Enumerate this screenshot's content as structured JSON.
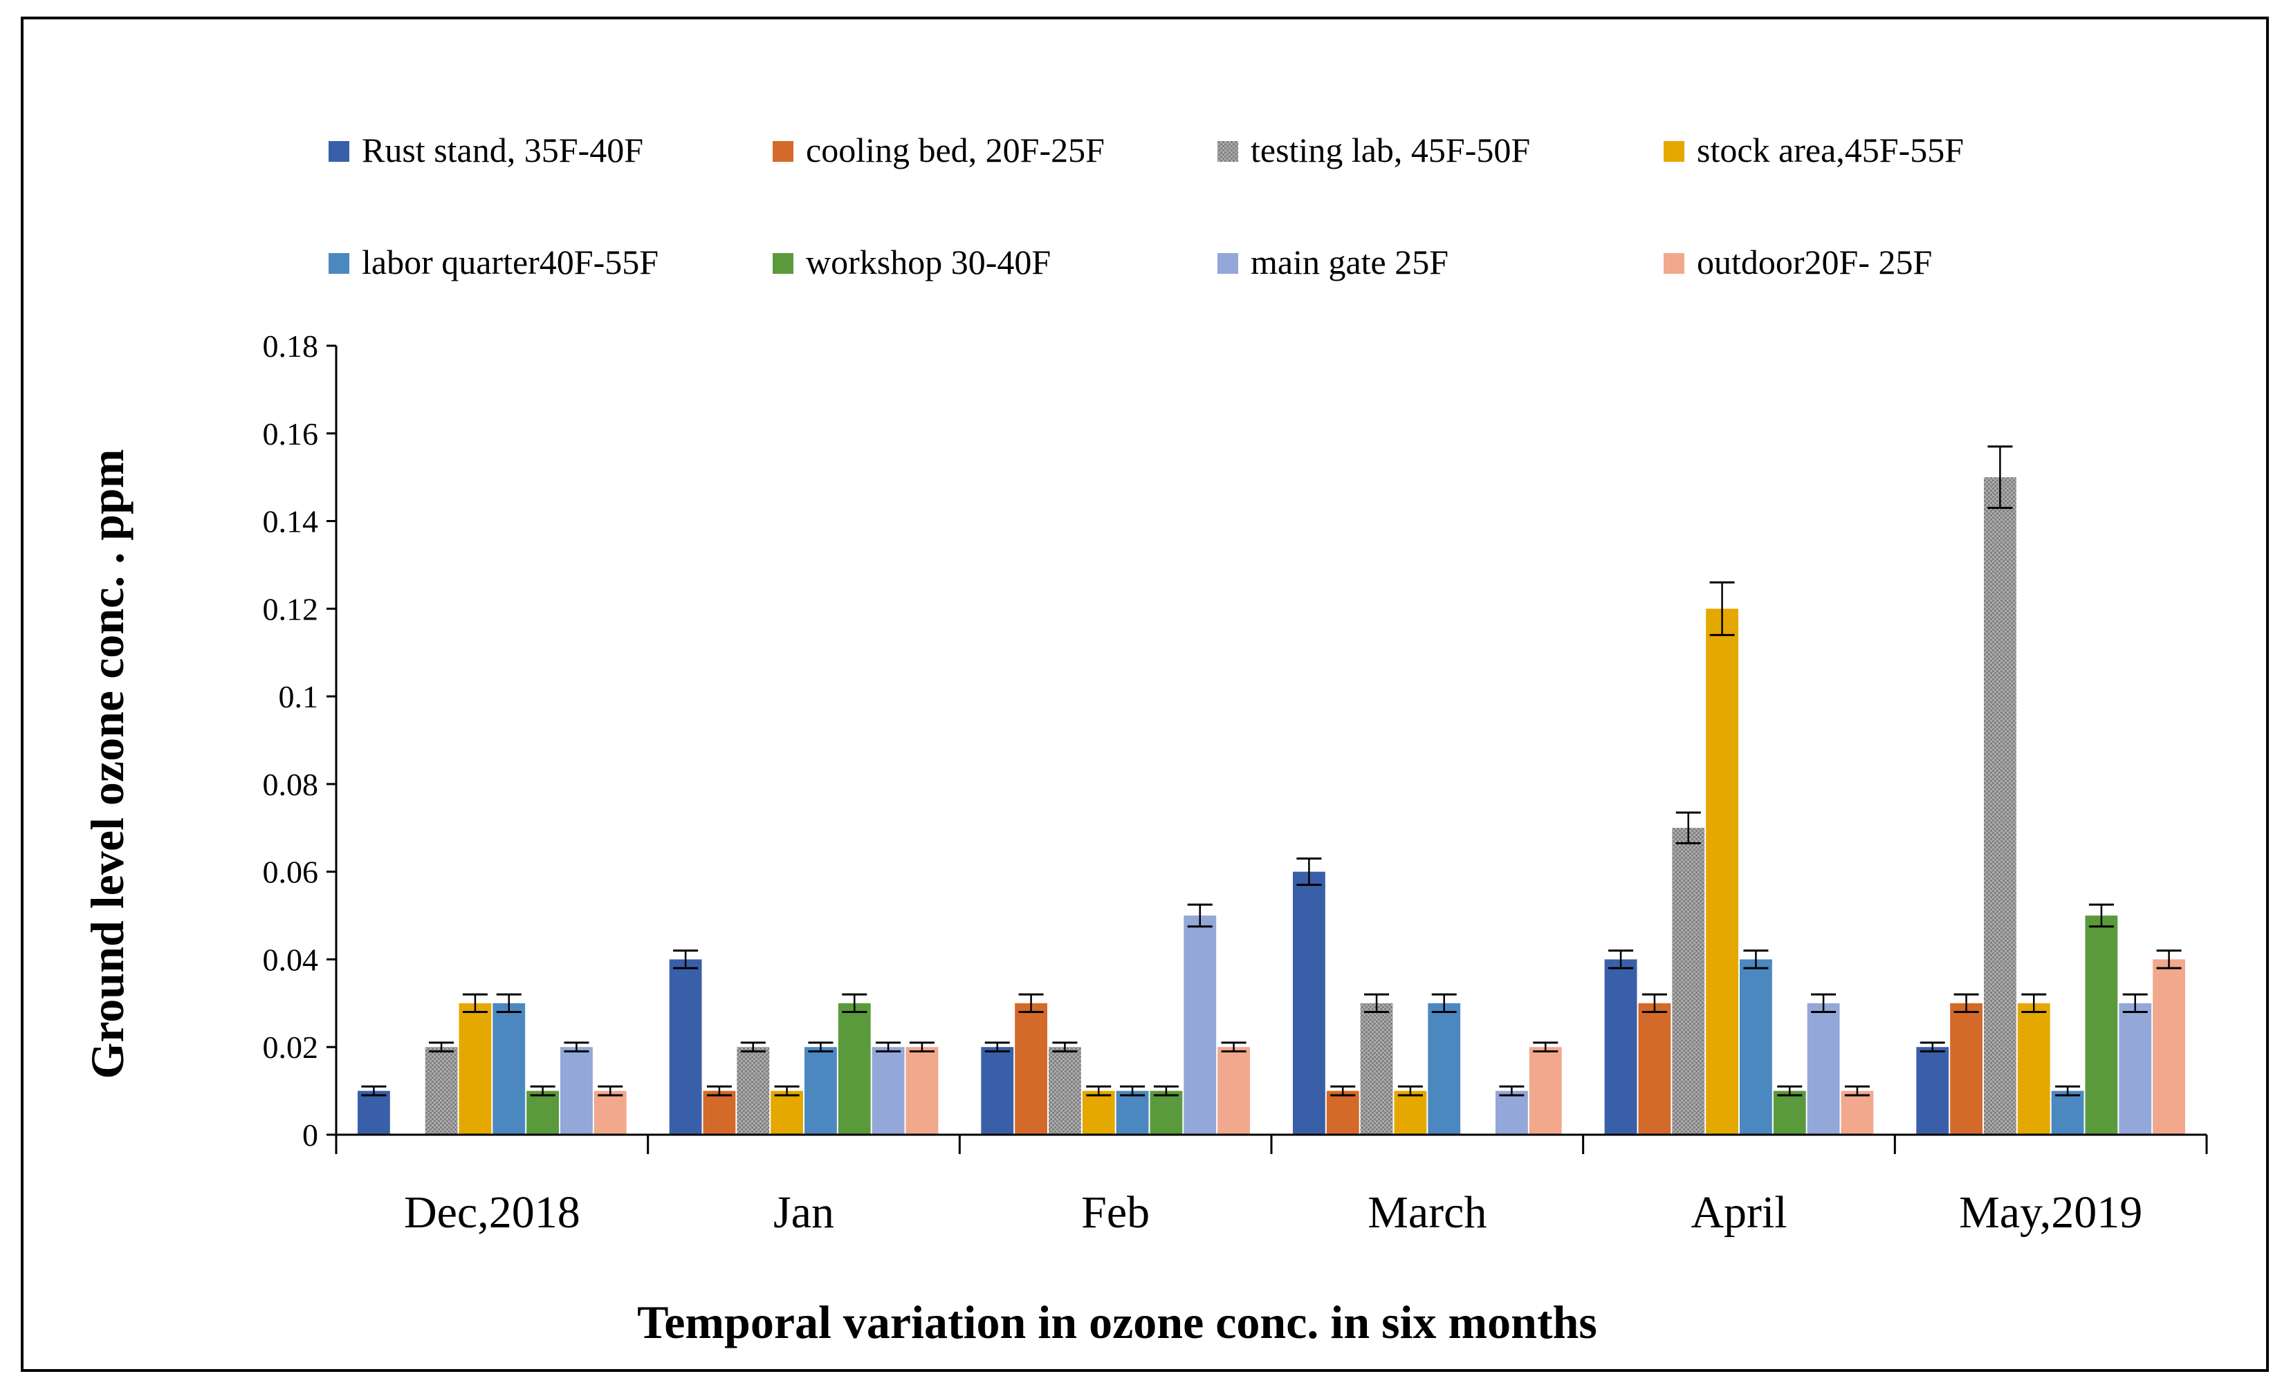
{
  "chart_data": {
    "type": "bar",
    "title": "",
    "xlabel": "Temporal variation in ozone conc. in six months",
    "ylabel": "Ground level  ozone conc. . ppm",
    "ylim": [
      0,
      0.18
    ],
    "yticks": [
      0,
      0.02,
      0.04,
      0.06,
      0.08,
      0.1,
      0.12,
      0.14,
      0.16,
      0.18
    ],
    "ytick_labels": [
      "0",
      "0.02",
      "0.04",
      "0.06",
      "0.08",
      "0.1",
      "0.12",
      "0.14",
      "0.16",
      "0.18"
    ],
    "categories": [
      "Dec,2018",
      "Jan",
      "Feb",
      "March",
      "April",
      "May,2019"
    ],
    "legend_position": "top",
    "error_bars": true,
    "series": [
      {
        "name": "Rust stand, 35F-40F",
        "color": "#3a5fa9",
        "values": [
          0.01,
          0.04,
          0.02,
          0.06,
          0.04,
          0.02
        ],
        "errors": [
          0.001,
          0.002,
          0.001,
          0.003,
          0.002,
          0.001
        ]
      },
      {
        "name": "cooling bed,  20F-25F",
        "color": "#d46a2a",
        "values": [
          0,
          0.01,
          0.03,
          0.01,
          0.03,
          0.03
        ],
        "errors": [
          0,
          0.001,
          0.002,
          0.001,
          0.002,
          0.002
        ]
      },
      {
        "name": "testing lab, 45F-50F",
        "color": "#9a9a9a",
        "values": [
          0.02,
          0.02,
          0.02,
          0.03,
          0.07,
          0.15
        ],
        "errors": [
          0.001,
          0.001,
          0.001,
          0.002,
          0.0035,
          0.007
        ]
      },
      {
        "name": "stock area,45F-55F",
        "color": "#e5a800",
        "values": [
          0.03,
          0.01,
          0.01,
          0.01,
          0.12,
          0.03
        ],
        "errors": [
          0.002,
          0.001,
          0.001,
          0.001,
          0.006,
          0.002
        ]
      },
      {
        "name": "labor quarter40F-55F",
        "color": "#4c88c0",
        "values": [
          0.03,
          0.02,
          0.01,
          0.03,
          0.04,
          0.01
        ],
        "errors": [
          0.002,
          0.001,
          0.001,
          0.002,
          0.002,
          0.001
        ]
      },
      {
        "name": "workshop 30-40F",
        "color": "#5b9a3c",
        "values": [
          0.01,
          0.03,
          0.01,
          0,
          0.01,
          0.05
        ],
        "errors": [
          0.001,
          0.002,
          0.001,
          0,
          0.001,
          0.0025
        ]
      },
      {
        "name": "main gate 25F",
        "color": "#93a7d8",
        "values": [
          0.02,
          0.02,
          0.05,
          0.01,
          0.03,
          0.03
        ],
        "errors": [
          0.001,
          0.001,
          0.0025,
          0.001,
          0.002,
          0.002
        ]
      },
      {
        "name": "outdoor20F-   25F",
        "color": "#f2a88c",
        "values": [
          0.01,
          0.02,
          0.02,
          0.02,
          0.01,
          0.04
        ],
        "errors": [
          0.001,
          0.001,
          0.001,
          0.001,
          0.001,
          0.002
        ]
      }
    ]
  }
}
